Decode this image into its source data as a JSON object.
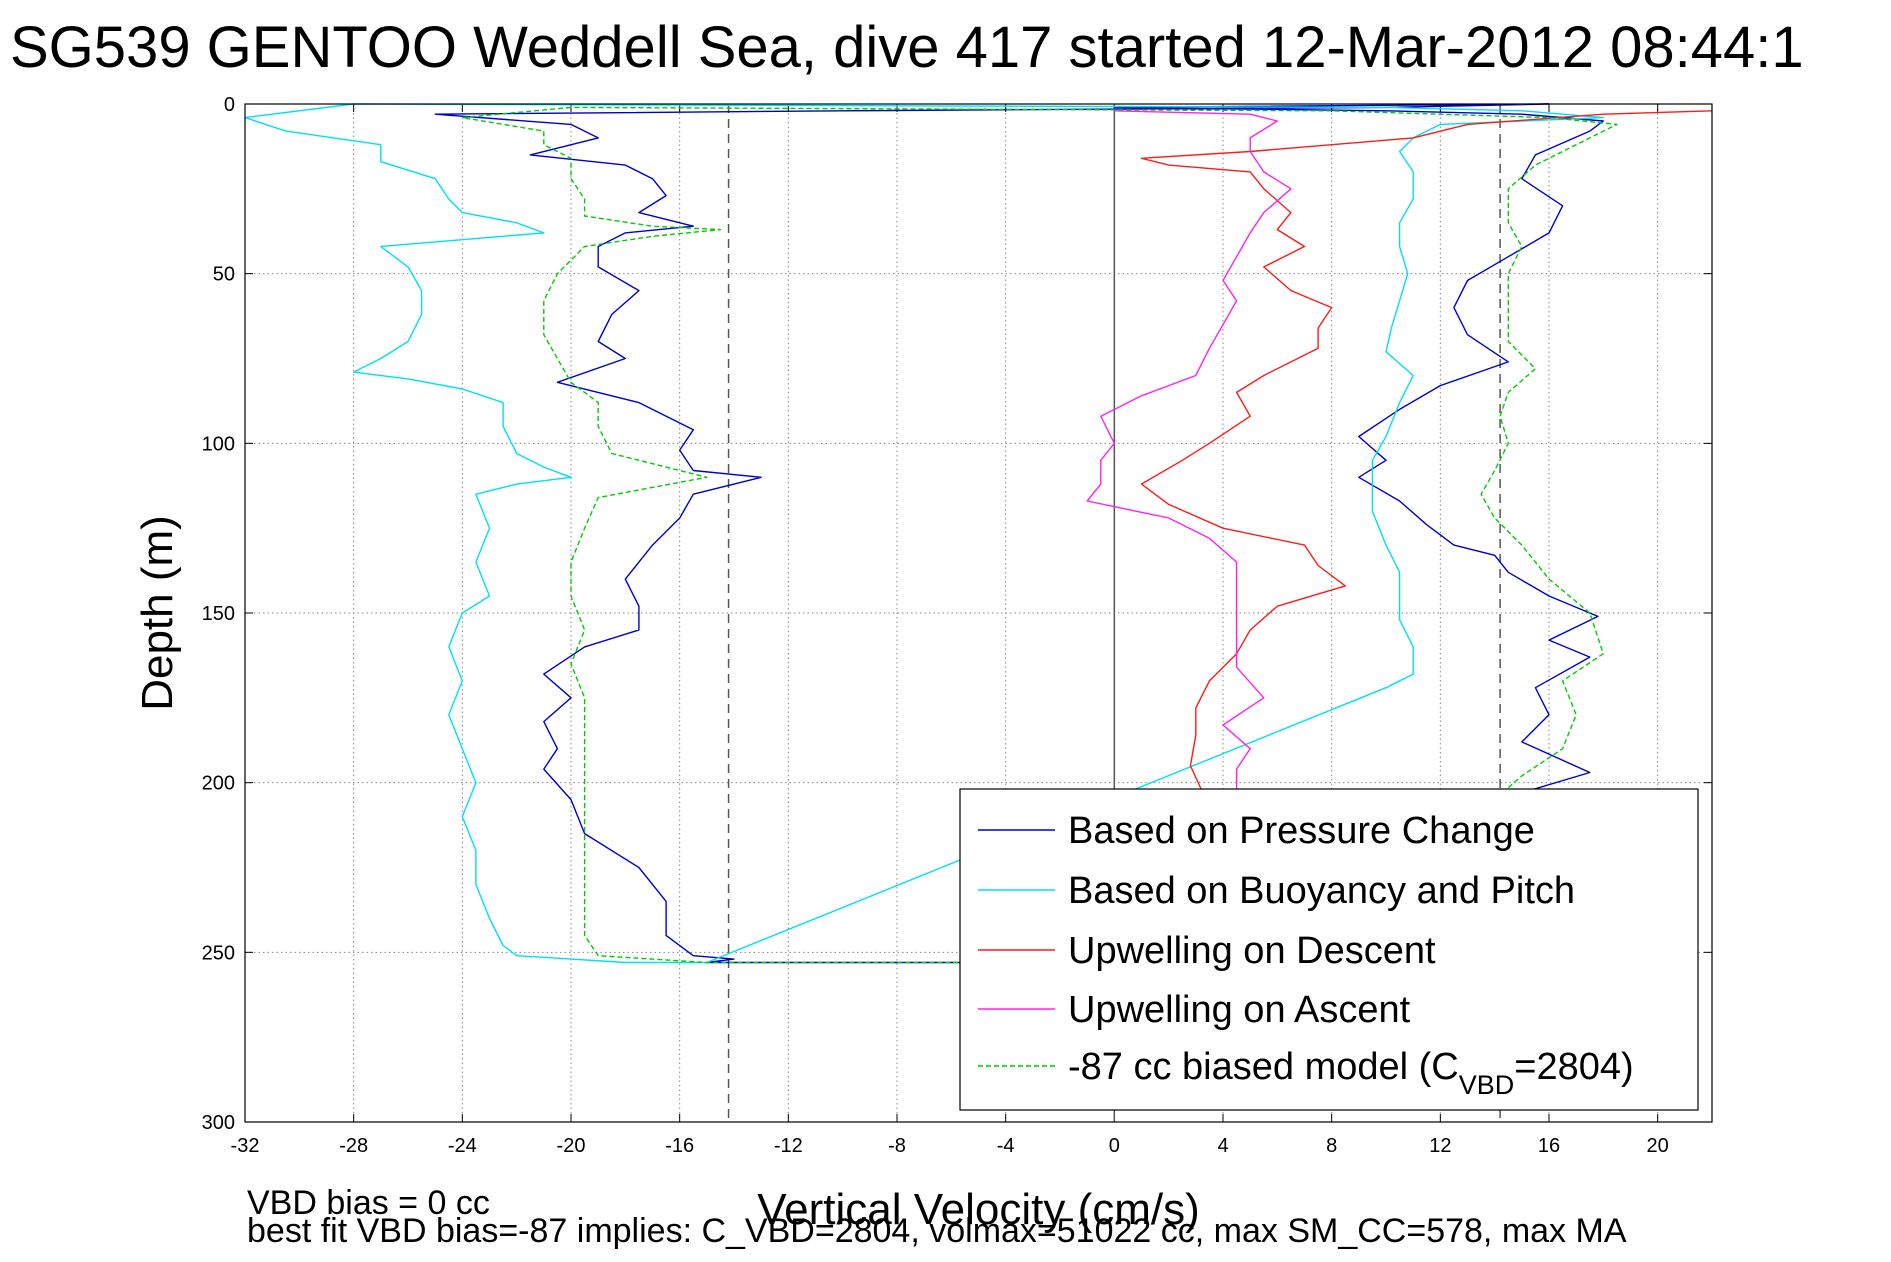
{
  "title": "SG539 GENTOO Weddell Sea, dive 417 started 12-Mar-2012 08:44:1",
  "footer": {
    "line1": "VBD bias = 0 cc",
    "line2": "best fit VBD bias=-87 implies: C_VBD=2804, volmax=51022 cc, max SM_CC=578, max MA"
  },
  "chart_data": {
    "type": "line",
    "xlabel": "Vertical Velocity (cm/s)",
    "ylabel": "Depth (m)",
    "xlim": [
      -32,
      22
    ],
    "ylim": [
      0,
      300
    ],
    "y_reversed": true,
    "grid": true,
    "x_ticks": [
      -32,
      -28,
      -24,
      -20,
      -16,
      -12,
      -8,
      -4,
      0,
      4,
      8,
      12,
      16,
      20
    ],
    "y_ticks": [
      0,
      50,
      100,
      150,
      200,
      250,
      300
    ],
    "reference_lines": [
      {
        "x": -14.2,
        "style": "dashed",
        "color": "#555555"
      },
      {
        "x": 0,
        "style": "solid",
        "color": "#555555"
      },
      {
        "x": 14.2,
        "style": "dashed",
        "color": "#555555"
      }
    ],
    "legend_position": "lower-right",
    "series": [
      {
        "name": "Based on Pressure Change",
        "color": "#0000cc",
        "style": "solid",
        "points": [
          [
            16,
            0
          ],
          [
            10,
            1
          ],
          [
            -10,
            2
          ],
          [
            -25,
            3
          ],
          [
            -20,
            6
          ],
          [
            -19,
            10
          ],
          [
            -21.5,
            15
          ],
          [
            -18,
            18
          ],
          [
            -17,
            22
          ],
          [
            -16.5,
            27
          ],
          [
            -17.5,
            32
          ],
          [
            -15.5,
            36
          ],
          [
            -18,
            38
          ],
          [
            -19,
            42
          ],
          [
            -19,
            48
          ],
          [
            -17.5,
            55
          ],
          [
            -18.5,
            62
          ],
          [
            -19,
            70
          ],
          [
            -18,
            75
          ],
          [
            -20.5,
            82
          ],
          [
            -17.5,
            88
          ],
          [
            -15.5,
            96
          ],
          [
            -16,
            102
          ],
          [
            -15.5,
            108
          ],
          [
            -13,
            110
          ],
          [
            -15.5,
            115
          ],
          [
            -16,
            122
          ],
          [
            -17,
            130
          ],
          [
            -18,
            140
          ],
          [
            -17.5,
            148
          ],
          [
            -17.5,
            155
          ],
          [
            -19.5,
            160
          ],
          [
            -21,
            168
          ],
          [
            -20,
            175
          ],
          [
            -21,
            182
          ],
          [
            -20.5,
            190
          ],
          [
            -21,
            196
          ],
          [
            -20,
            205
          ],
          [
            -19.5,
            215
          ],
          [
            -17.5,
            225
          ],
          [
            -16.5,
            235
          ],
          [
            -16.5,
            245
          ],
          [
            -15.5,
            251
          ],
          [
            -14,
            252
          ],
          [
            -15,
            253
          ],
          [
            16,
            253
          ],
          [
            14,
            206
          ],
          [
            15,
            203
          ],
          [
            17.5,
            197
          ],
          [
            15,
            188
          ],
          [
            16,
            180
          ],
          [
            15.5,
            172
          ],
          [
            17.5,
            163
          ],
          [
            16,
            158
          ],
          [
            17.8,
            151
          ],
          [
            16,
            145
          ],
          [
            14.5,
            138
          ],
          [
            14,
            133
          ],
          [
            12.5,
            130
          ],
          [
            11.5,
            124
          ],
          [
            10.5,
            117
          ],
          [
            9,
            110
          ],
          [
            10,
            105
          ],
          [
            9,
            98
          ],
          [
            10.5,
            90
          ],
          [
            12,
            83
          ],
          [
            14.5,
            76
          ],
          [
            13,
            68
          ],
          [
            12.5,
            60
          ],
          [
            13,
            52
          ],
          [
            14.5,
            45
          ],
          [
            16,
            38
          ],
          [
            16.5,
            30
          ],
          [
            15,
            22
          ],
          [
            15.5,
            15
          ],
          [
            17.5,
            8
          ],
          [
            18,
            5
          ],
          [
            15,
            3
          ],
          [
            10,
            2
          ],
          [
            0,
            1
          ],
          [
            16,
            0
          ]
        ]
      },
      {
        "name": "Based on Buoyancy and Pitch",
        "color": "#00e0ee",
        "style": "solid",
        "points": [
          [
            -28,
            0
          ],
          [
            -32,
            4
          ],
          [
            -30.5,
            8
          ],
          [
            -27,
            12
          ],
          [
            -27,
            17
          ],
          [
            -25,
            22
          ],
          [
            -24.5,
            28
          ],
          [
            -24,
            32
          ],
          [
            -22,
            35
          ],
          [
            -21,
            38
          ],
          [
            -27,
            42
          ],
          [
            -26,
            48
          ],
          [
            -25.5,
            55
          ],
          [
            -25.5,
            62
          ],
          [
            -26,
            70
          ],
          [
            -27,
            75
          ],
          [
            -28,
            79
          ],
          [
            -26,
            81
          ],
          [
            -24,
            84
          ],
          [
            -22.5,
            88
          ],
          [
            -22.5,
            95
          ],
          [
            -22,
            103
          ],
          [
            -21,
            107
          ],
          [
            -20,
            110
          ],
          [
            -22,
            112
          ],
          [
            -23.5,
            115
          ],
          [
            -23,
            125
          ],
          [
            -23.5,
            135
          ],
          [
            -23,
            145
          ],
          [
            -24,
            150
          ],
          [
            -24.5,
            160
          ],
          [
            -24,
            170
          ],
          [
            -24.5,
            180
          ],
          [
            -24,
            190
          ],
          [
            -23.5,
            200
          ],
          [
            -24,
            210
          ],
          [
            -23.5,
            220
          ],
          [
            -23.5,
            230
          ],
          [
            -23,
            240
          ],
          [
            -22.5,
            248
          ],
          [
            -22,
            251
          ],
          [
            -20,
            252
          ],
          [
            -18,
            253
          ],
          [
            -15,
            253
          ],
          [
            10,
            172
          ],
          [
            11,
            168
          ],
          [
            11,
            160
          ],
          [
            10.5,
            152
          ],
          [
            10.5,
            145
          ],
          [
            10.5,
            138
          ],
          [
            10,
            130
          ],
          [
            9.5,
            120
          ],
          [
            9.5,
            112
          ],
          [
            9.5,
            105
          ],
          [
            10,
            98
          ],
          [
            10.5,
            88
          ],
          [
            11,
            80
          ],
          [
            10,
            73
          ],
          [
            10.2,
            66
          ],
          [
            10.5,
            58
          ],
          [
            10.8,
            50
          ],
          [
            10.5,
            42
          ],
          [
            10.5,
            35
          ],
          [
            11,
            28
          ],
          [
            11,
            20
          ],
          [
            10.5,
            14
          ],
          [
            11,
            10
          ],
          [
            12,
            6
          ],
          [
            18,
            4
          ],
          [
            15,
            2
          ],
          [
            10,
            1
          ],
          [
            -28,
            0
          ]
        ]
      },
      {
        "name": "Upwelling on Descent",
        "color": "#ff1a1a",
        "style": "solid",
        "points": [
          [
            22,
            2
          ],
          [
            18,
            3
          ],
          [
            13,
            6
          ],
          [
            11,
            10
          ],
          [
            5,
            14
          ],
          [
            1,
            16
          ],
          [
            2,
            18
          ],
          [
            5,
            20
          ],
          [
            5.5,
            25
          ],
          [
            6.5,
            32
          ],
          [
            6,
            37
          ],
          [
            7,
            42
          ],
          [
            5.5,
            48
          ],
          [
            6.5,
            55
          ],
          [
            8,
            60
          ],
          [
            7.5,
            66
          ],
          [
            7.5,
            72
          ],
          [
            5.5,
            80
          ],
          [
            4.5,
            85
          ],
          [
            5,
            92
          ],
          [
            3.5,
            100
          ],
          [
            2.5,
            105
          ],
          [
            1,
            112
          ],
          [
            2,
            118
          ],
          [
            4,
            125
          ],
          [
            7,
            130
          ],
          [
            7.5,
            136
          ],
          [
            8.5,
            142
          ],
          [
            6,
            148
          ],
          [
            5,
            155
          ],
          [
            4.5,
            162
          ],
          [
            3.5,
            170
          ],
          [
            3,
            178
          ],
          [
            3,
            186
          ],
          [
            2.8,
            195
          ],
          [
            3.2,
            202
          ]
        ]
      },
      {
        "name": "Upwelling on Ascent",
        "color": "#ff22ee",
        "style": "solid",
        "points": [
          [
            4.5,
            202
          ],
          [
            4.5,
            196
          ],
          [
            5,
            190
          ],
          [
            4,
            183
          ],
          [
            5.5,
            175
          ],
          [
            4.5,
            166
          ],
          [
            4.5,
            158
          ],
          [
            4.5,
            150
          ],
          [
            4.5,
            142
          ],
          [
            4.5,
            135
          ],
          [
            3.5,
            128
          ],
          [
            2,
            122
          ],
          [
            -1,
            117
          ],
          [
            -0.5,
            112
          ],
          [
            -0.5,
            105
          ],
          [
            0,
            100
          ],
          [
            -0.5,
            92
          ],
          [
            1,
            86
          ],
          [
            3,
            80
          ],
          [
            3.5,
            72
          ],
          [
            4,
            65
          ],
          [
            4.5,
            58
          ],
          [
            4,
            52
          ],
          [
            4.5,
            45
          ],
          [
            5,
            38
          ],
          [
            5.5,
            32
          ],
          [
            6.5,
            25
          ],
          [
            5.5,
            20
          ],
          [
            5,
            14
          ],
          [
            5,
            10
          ],
          [
            6,
            5
          ],
          [
            5,
            3
          ],
          [
            0,
            2
          ]
        ]
      },
      {
        "name": "-87 cc biased model (C_VBD=2804)",
        "legend_label": "-87 cc biased model (C",
        "legend_sub": "VBD",
        "legend_suffix": "=2804)",
        "color": "#00cc00",
        "style": "dashed",
        "points": [
          [
            -20,
            1
          ],
          [
            -24,
            4
          ],
          [
            -21,
            8
          ],
          [
            -21,
            12
          ],
          [
            -20,
            16
          ],
          [
            -20,
            22
          ],
          [
            -19.5,
            28
          ],
          [
            -19.5,
            33
          ],
          [
            -17,
            36
          ],
          [
            -14.5,
            37
          ],
          [
            -17,
            39
          ],
          [
            -19.5,
            42
          ],
          [
            -20.5,
            50
          ],
          [
            -21,
            58
          ],
          [
            -21,
            68
          ],
          [
            -20.5,
            75
          ],
          [
            -20,
            82
          ],
          [
            -19,
            88
          ],
          [
            -19,
            95
          ],
          [
            -18.5,
            103
          ],
          [
            -16.5,
            107
          ],
          [
            -15,
            110
          ],
          [
            -17,
            113
          ],
          [
            -19,
            116
          ],
          [
            -19.5,
            125
          ],
          [
            -20,
            135
          ],
          [
            -20,
            145
          ],
          [
            -19.5,
            155
          ],
          [
            -20,
            165
          ],
          [
            -19.5,
            175
          ],
          [
            -19.5,
            185
          ],
          [
            -19.5,
            195
          ],
          [
            -19.5,
            205
          ],
          [
            -19.5,
            215
          ],
          [
            -19.5,
            225
          ],
          [
            -19.5,
            235
          ],
          [
            -19.5,
            245
          ],
          [
            -19,
            251
          ],
          [
            -17,
            252
          ],
          [
            -15,
            253
          ],
          [
            15,
            253
          ],
          [
            14,
            205
          ],
          [
            15,
            198
          ],
          [
            16.5,
            190
          ],
          [
            17,
            180
          ],
          [
            16.5,
            170
          ],
          [
            18,
            162
          ],
          [
            17.5,
            150
          ],
          [
            16,
            140
          ],
          [
            15,
            130
          ],
          [
            14,
            122
          ],
          [
            13.5,
            115
          ],
          [
            14,
            108
          ],
          [
            14.5,
            100
          ],
          [
            14.2,
            92
          ],
          [
            14.5,
            85
          ],
          [
            15.5,
            78
          ],
          [
            14.5,
            70
          ],
          [
            14.5,
            60
          ],
          [
            14.5,
            50
          ],
          [
            15,
            42
          ],
          [
            14.5,
            35
          ],
          [
            14.5,
            25
          ],
          [
            15.5,
            18
          ],
          [
            17.5,
            10
          ],
          [
            18.5,
            6
          ],
          [
            16,
            4
          ],
          [
            8,
            2
          ],
          [
            -20,
            1
          ]
        ]
      }
    ]
  }
}
